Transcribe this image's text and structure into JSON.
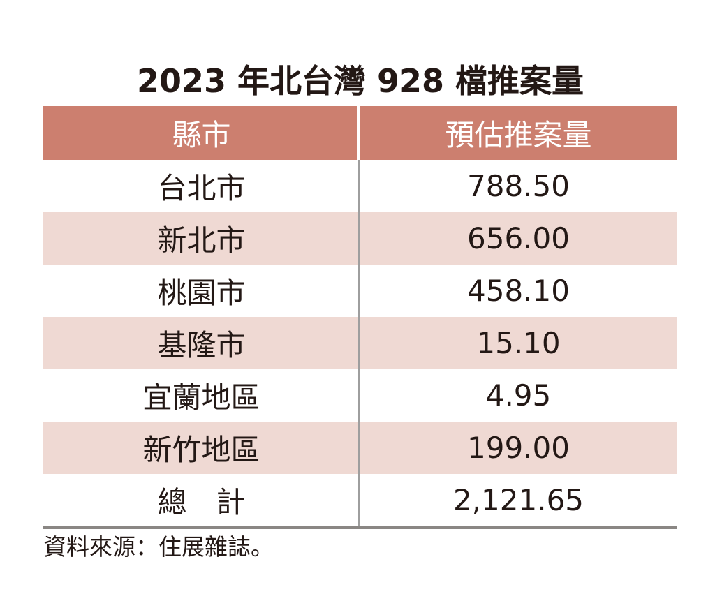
{
  "title": "2023 年北台灣 928 檔推案量",
  "chart_data": {
    "type": "table",
    "title": "2023 年北台灣 928 檔推案量",
    "columns": [
      "縣市",
      "預估推案量"
    ],
    "rows": [
      {
        "city": "台北市",
        "value": "788.50"
      },
      {
        "city": "新北市",
        "value": "656.00"
      },
      {
        "city": "桃園市",
        "value": "458.10"
      },
      {
        "city": "基隆市",
        "value": "15.10"
      },
      {
        "city": "宜蘭地區",
        "value": "4.95"
      },
      {
        "city": "新竹地區",
        "value": "199.00"
      },
      {
        "city": "總　計",
        "value": "2,121.65"
      }
    ],
    "categories": [
      "台北市",
      "新北市",
      "桃園市",
      "基隆市",
      "宜蘭地區",
      "新竹地區"
    ],
    "values": [
      788.5,
      656.0,
      458.1,
      15.1,
      4.95,
      199.0
    ],
    "total": 2121.65,
    "legend_position": "none",
    "grid": false
  },
  "footer": {
    "source": "資料來源：住展雜誌。"
  },
  "colors": {
    "header_background": "#CC7F6F",
    "header_text": "#FFFFFF",
    "stripe_background": "#EFD9D3",
    "row_background": "#FFFFFF",
    "body_text": "#231815",
    "column_divider": "#9E9E9E",
    "bottom_rule": "#8A8784"
  }
}
